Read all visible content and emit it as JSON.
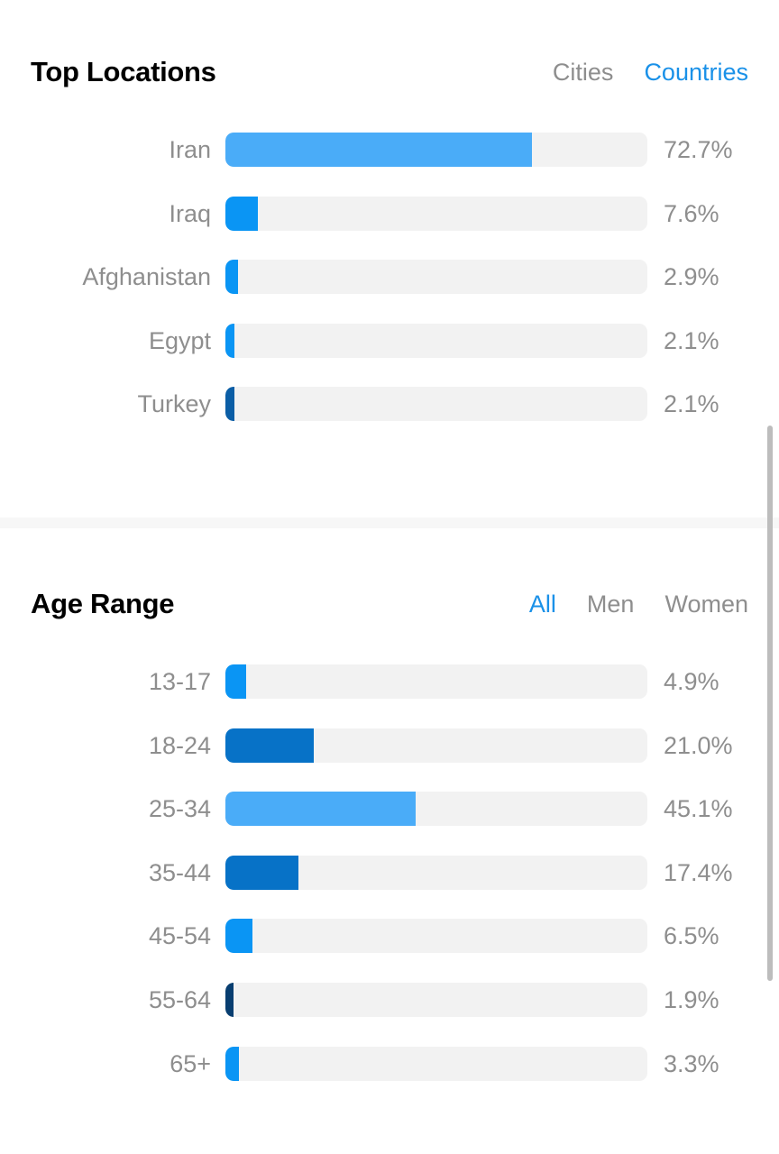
{
  "locations": {
    "title": "Top Locations",
    "tabs": [
      {
        "label": "Cities",
        "active": false
      },
      {
        "label": "Countries",
        "active": true
      }
    ],
    "rows": [
      {
        "label": "Iran",
        "value_text": "72.7%",
        "value": 72.7,
        "color": "#4aacf8"
      },
      {
        "label": "Iraq",
        "value_text": "7.6%",
        "value": 7.6,
        "color": "#0a95f4"
      },
      {
        "label": "Afghanistan",
        "value_text": "2.9%",
        "value": 2.9,
        "color": "#0a95f4"
      },
      {
        "label": "Egypt",
        "value_text": "2.1%",
        "value": 2.1,
        "color": "#0a95f4"
      },
      {
        "label": "Turkey",
        "value_text": "2.1%",
        "value": 2.1,
        "color": "#0b5ea6"
      }
    ]
  },
  "age": {
    "title": "Age Range",
    "tabs": [
      {
        "label": "All",
        "active": true
      },
      {
        "label": "Men",
        "active": false
      },
      {
        "label": "Women",
        "active": false
      }
    ],
    "rows": [
      {
        "label": "13-17",
        "value_text": "4.9%",
        "value": 4.9,
        "color": "#0a95f4"
      },
      {
        "label": "18-24",
        "value_text": "21.0%",
        "value": 21.0,
        "color": "#0772c7"
      },
      {
        "label": "25-34",
        "value_text": "45.1%",
        "value": 45.1,
        "color": "#4aacf8"
      },
      {
        "label": "35-44",
        "value_text": "17.4%",
        "value": 17.4,
        "color": "#0772c7"
      },
      {
        "label": "45-54",
        "value_text": "6.5%",
        "value": 6.5,
        "color": "#0a95f4"
      },
      {
        "label": "55-64",
        "value_text": "1.9%",
        "value": 1.9,
        "color": "#083e70"
      },
      {
        "label": "65+",
        "value_text": "3.3%",
        "value": 3.3,
        "color": "#0a95f4"
      }
    ]
  },
  "chart_data": [
    {
      "type": "bar",
      "title": "Top Locations",
      "categories": [
        "Iran",
        "Iraq",
        "Afghanistan",
        "Egypt",
        "Turkey"
      ],
      "values": [
        72.7,
        7.6,
        2.9,
        2.1,
        2.1
      ],
      "ylim": [
        0,
        100
      ]
    },
    {
      "type": "bar",
      "title": "Age Range",
      "categories": [
        "13-17",
        "18-24",
        "25-34",
        "35-44",
        "45-54",
        "55-64",
        "65+"
      ],
      "values": [
        4.9,
        21.0,
        45.1,
        17.4,
        6.5,
        1.9,
        3.3
      ],
      "ylim": [
        0,
        100
      ]
    }
  ]
}
